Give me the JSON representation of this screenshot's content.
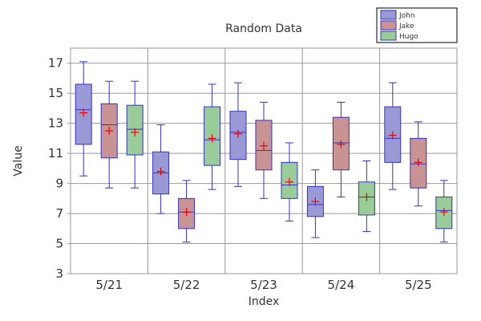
{
  "chart_data": {
    "type": "box",
    "title": "Random Data",
    "xlabel": "Index",
    "ylabel": "Value",
    "ylim": [
      3,
      18
    ],
    "yticks": [
      3,
      5,
      7,
      9,
      11,
      13,
      15,
      17
    ],
    "categories": [
      "5/21",
      "5/22",
      "5/23",
      "5/24",
      "5/25"
    ],
    "grid": true,
    "legend_position": "top-right",
    "series": [
      {
        "name": "John",
        "color": "#9999d6",
        "median_color": "#3333cc",
        "boxes": [
          {
            "min": 9.5,
            "q1": 11.6,
            "median": 13.9,
            "q3": 15.6,
            "max": 17.1,
            "mean": 13.7
          },
          {
            "min": 7.0,
            "q1": 8.3,
            "median": 9.7,
            "q3": 11.1,
            "max": 12.9,
            "mean": 9.8
          },
          {
            "min": 8.8,
            "q1": 10.6,
            "median": 12.4,
            "q3": 13.8,
            "max": 15.7,
            "mean": 12.3
          },
          {
            "min": 5.4,
            "q1": 6.8,
            "median": 7.6,
            "q3": 8.8,
            "max": 9.9,
            "mean": 7.8
          },
          {
            "min": 8.6,
            "q1": 10.4,
            "median": 12.0,
            "q3": 14.1,
            "max": 15.7,
            "mean": 12.2
          }
        ]
      },
      {
        "name": "Jake",
        "color": "#c99393",
        "median_color": "#3333cc",
        "boxes": [
          {
            "min": 8.7,
            "q1": 10.7,
            "median": 12.9,
            "q3": 14.3,
            "max": 15.8,
            "mean": 12.5
          },
          {
            "min": 5.1,
            "q1": 6.0,
            "median": 7.1,
            "q3": 8.0,
            "max": 9.2,
            "mean": 7.1
          },
          {
            "min": 8.0,
            "q1": 9.9,
            "median": 11.2,
            "q3": 13.2,
            "max": 14.4,
            "mean": 11.5
          },
          {
            "min": 8.1,
            "q1": 9.9,
            "median": 11.7,
            "q3": 13.4,
            "max": 14.4,
            "mean": 11.6
          },
          {
            "min": 7.5,
            "q1": 8.7,
            "median": 10.3,
            "q3": 12.0,
            "max": 13.1,
            "mean": 10.4
          }
        ]
      },
      {
        "name": "Hugo",
        "color": "#99cc99",
        "median_color": "#3333cc",
        "boxes": [
          {
            "min": 8.7,
            "q1": 10.9,
            "median": 12.6,
            "q3": 14.2,
            "max": 15.8,
            "mean": 12.4
          },
          {
            "min": 8.6,
            "q1": 10.2,
            "median": 11.9,
            "q3": 14.1,
            "max": 15.6,
            "mean": 12.0
          },
          {
            "min": 6.5,
            "q1": 8.0,
            "median": 8.9,
            "q3": 10.4,
            "max": 11.7,
            "mean": 9.1
          },
          {
            "min": 5.8,
            "q1": 6.9,
            "median": 8.1,
            "q3": 9.1,
            "max": 10.5,
            "mean": 8.1
          },
          {
            "min": 5.1,
            "q1": 6.0,
            "median": 7.2,
            "q3": 8.1,
            "max": 9.2,
            "mean": 7.1
          }
        ]
      }
    ]
  }
}
